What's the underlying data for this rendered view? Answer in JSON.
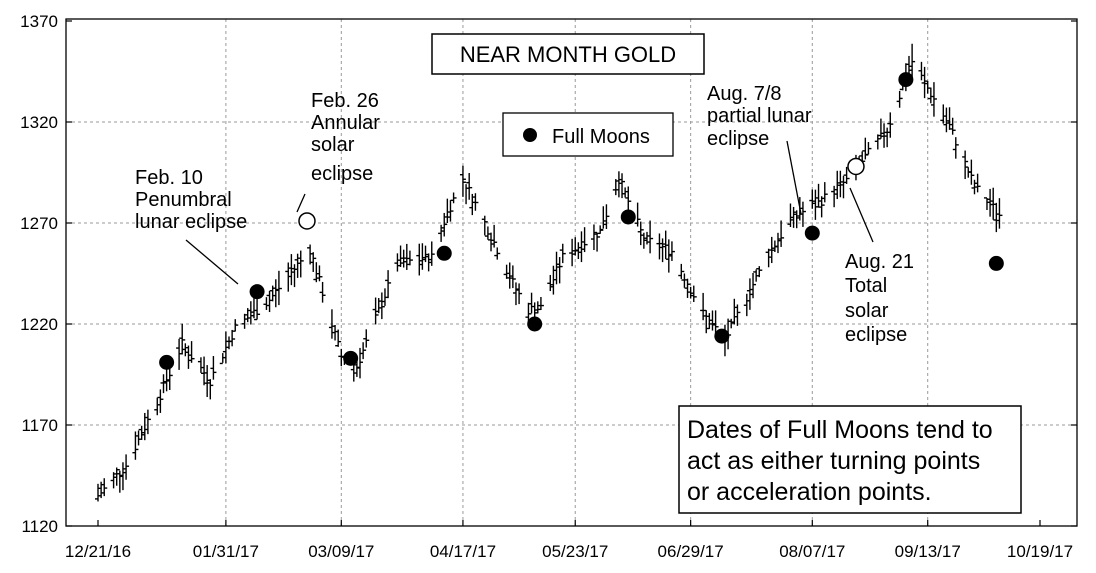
{
  "chart_data": {
    "type": "ohlc",
    "title": "NEAR MONTH GOLD",
    "x_tick_labels": [
      "12/21/16",
      "01/31/17",
      "03/09/17",
      "04/17/17",
      "05/23/17",
      "06/29/17",
      "08/07/17",
      "09/13/17",
      "10/19/17"
    ],
    "y_ticks": [
      1120,
      1170,
      1220,
      1270,
      1320,
      1370
    ],
    "ylim": [
      1120,
      1370
    ],
    "xlim": [
      "12/21/16",
      "10/19/17"
    ],
    "grid": true,
    "legend": [
      {
        "label": "Full Moons",
        "marker": "filled-circle"
      }
    ],
    "full_moons": [
      {
        "date": "01/12/17",
        "price": 1201
      },
      {
        "date": "02/10/17",
        "price": 1236
      },
      {
        "date": "03/12/17",
        "price": 1203
      },
      {
        "date": "04/11/17",
        "price": 1255
      },
      {
        "date": "05/10/17",
        "price": 1220
      },
      {
        "date": "06/09/17",
        "price": 1273
      },
      {
        "date": "07/09/17",
        "price": 1214
      },
      {
        "date": "08/07/17",
        "price": 1265
      },
      {
        "date": "09/06/17",
        "price": 1341
      },
      {
        "date": "10/05/17",
        "price": 1250
      }
    ],
    "eclipses": [
      {
        "date": "02/26/17",
        "price": 1271
      },
      {
        "date": "08/21/17",
        "price": 1298
      }
    ],
    "price_path": [
      {
        "date": "12/21/16",
        "price": 1135
      },
      {
        "date": "12/30/16",
        "price": 1150
      },
      {
        "date": "01/10/17",
        "price": 1185
      },
      {
        "date": "01/17/17",
        "price": 1210
      },
      {
        "date": "01/26/17",
        "price": 1192
      },
      {
        "date": "02/03/17",
        "price": 1218
      },
      {
        "date": "02/14/17",
        "price": 1232
      },
      {
        "date": "02/27/17",
        "price": 1257
      },
      {
        "date": "03/09/17",
        "price": 1204
      },
      {
        "date": "03/14/17",
        "price": 1199
      },
      {
        "date": "03/27/17",
        "price": 1250
      },
      {
        "date": "04/07/17",
        "price": 1253
      },
      {
        "date": "04/12/17",
        "price": 1275
      },
      {
        "date": "04/17/17",
        "price": 1292
      },
      {
        "date": "04/25/17",
        "price": 1267
      },
      {
        "date": "05/04/17",
        "price": 1237
      },
      {
        "date": "05/08/17",
        "price": 1227
      },
      {
        "date": "05/12/17",
        "price": 1228
      },
      {
        "date": "05/19/17",
        "price": 1253
      },
      {
        "date": "05/31/17",
        "price": 1266
      },
      {
        "date": "06/06/17",
        "price": 1292
      },
      {
        "date": "06/14/17",
        "price": 1262
      },
      {
        "date": "06/23/17",
        "price": 1256
      },
      {
        "date": "07/03/17",
        "price": 1225
      },
      {
        "date": "07/10/17",
        "price": 1212
      },
      {
        "date": "07/24/17",
        "price": 1255
      },
      {
        "date": "08/01/17",
        "price": 1273
      },
      {
        "date": "08/09/17",
        "price": 1280
      },
      {
        "date": "08/18/17",
        "price": 1291
      },
      {
        "date": "08/31/17",
        "price": 1316
      },
      {
        "date": "09/08/17",
        "price": 1350
      },
      {
        "date": "09/20/17",
        "price": 1318
      },
      {
        "date": "09/28/17",
        "price": 1288
      },
      {
        "date": "10/06/17",
        "price": 1274
      }
    ]
  },
  "annotations": {
    "feb10": [
      "Feb. 10",
      "Penumbral",
      "lunar eclipse"
    ],
    "feb26": [
      "Feb. 26",
      "Annular",
      "solar",
      "eclipse"
    ],
    "aug78": [
      "Aug. 7/8",
      "partial lunar",
      "eclipse"
    ],
    "aug21": [
      "Aug. 21",
      "Total",
      "solar",
      "eclipse"
    ],
    "note": [
      "Dates of Full Moons tend to",
      "act as either turning points",
      "or acceleration points."
    ]
  },
  "colors": {
    "marker": "#000000",
    "grid": "#9a9a9a",
    "background": "#ffffff"
  }
}
